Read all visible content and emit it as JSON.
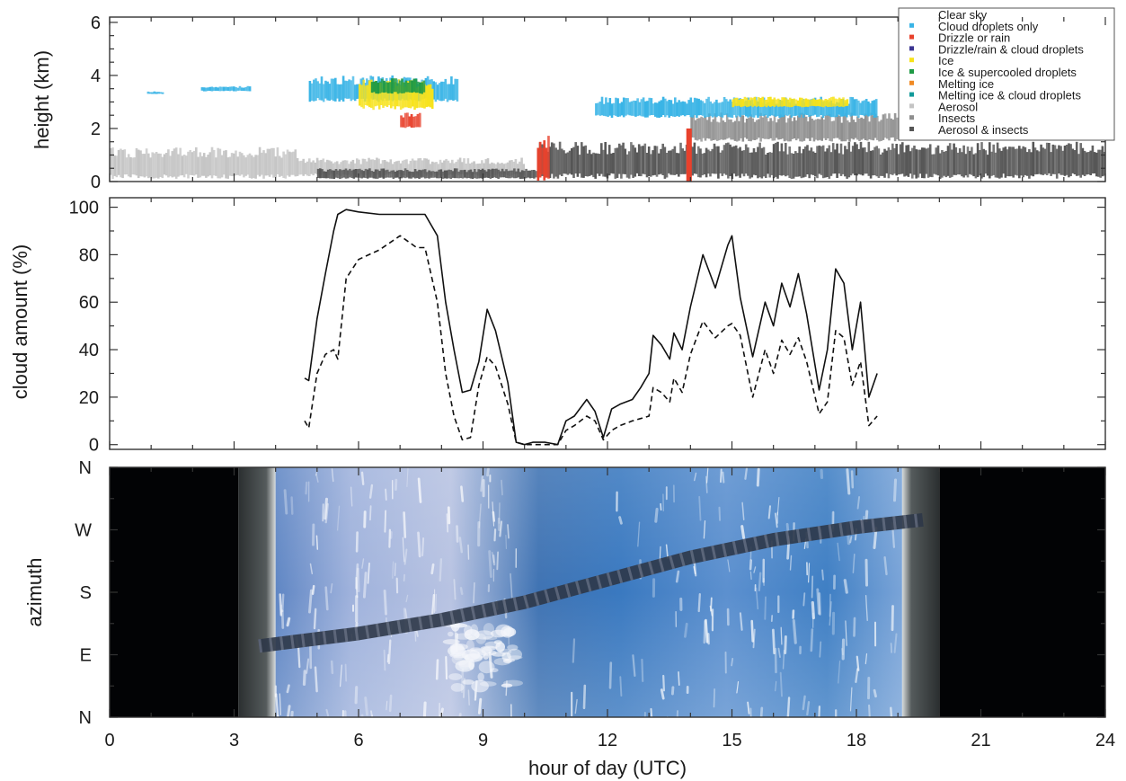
{
  "chart_data": [
    {
      "type": "heatmap",
      "ylabel": "height (km)",
      "ylim": [
        0,
        6.2
      ],
      "y_ticks": [
        "0",
        "2",
        "4",
        "6"
      ],
      "legend": {
        "placement": "top-right",
        "entries": [
          {
            "label": "Clear sky",
            "color": "#ffffff"
          },
          {
            "label": "Cloud droplets only",
            "color": "#39b4e6"
          },
          {
            "label": "Drizzle or rain",
            "color": "#e8412c"
          },
          {
            "label": "Drizzle/rain & cloud droplets",
            "color": "#3b3591"
          },
          {
            "label": "Ice",
            "color": "#f7e21a"
          },
          {
            "label": "Ice & supercooled droplets",
            "color": "#1f9a45"
          },
          {
            "label": "Melting ice",
            "color": "#f08a24"
          },
          {
            "label": "Melting ice & cloud droplets",
            "color": "#129a9a"
          },
          {
            "label": "Aerosol",
            "color": "#c4c4c4"
          },
          {
            "label": "Insects",
            "color": "#8f8f8f"
          },
          {
            "label": "Aerosol & insects",
            "color": "#555555"
          }
        ]
      },
      "regions": [
        {
          "class": "Aerosol",
          "x": [
            0,
            4.5
          ],
          "y": [
            0.1,
            1.3
          ]
        },
        {
          "class": "Aerosol",
          "x": [
            4.5,
            10
          ],
          "y": [
            0.2,
            0.9
          ]
        },
        {
          "class": "Aerosol & insects",
          "x": [
            5,
            10.3
          ],
          "y": [
            0.1,
            0.5
          ]
        },
        {
          "class": "Aerosol & insects",
          "x": [
            10.3,
            24
          ],
          "y": [
            0.1,
            1.5
          ]
        },
        {
          "class": "Insects",
          "x": [
            14,
            19
          ],
          "y": [
            1.5,
            2.6
          ]
        },
        {
          "class": "Cloud droplets only",
          "x": [
            0.9,
            1.3
          ],
          "y": [
            3.3,
            3.4
          ]
        },
        {
          "class": "Cloud droplets only",
          "x": [
            2.2,
            3.4
          ],
          "y": [
            3.4,
            3.6
          ]
        },
        {
          "class": "Cloud droplets only",
          "x": [
            4.8,
            8.4
          ],
          "y": [
            3.0,
            4.0
          ]
        },
        {
          "class": "Ice",
          "x": [
            6.0,
            7.8
          ],
          "y": [
            2.7,
            3.9
          ]
        },
        {
          "class": "Ice & supercooled droplets",
          "x": [
            6.3,
            7.6
          ],
          "y": [
            3.3,
            3.9
          ]
        },
        {
          "class": "Drizzle or rain",
          "x": [
            7.0,
            7.5
          ],
          "y": [
            2.0,
            2.6
          ]
        },
        {
          "class": "Drizzle or rain",
          "x": [
            10.3,
            10.6
          ],
          "y": [
            0.0,
            1.8
          ]
        },
        {
          "class": "Drizzle or rain",
          "x": [
            13.9,
            14.0
          ],
          "y": [
            0.0,
            2.0
          ]
        },
        {
          "class": "Cloud droplets only",
          "x": [
            11.7,
            18.5
          ],
          "y": [
            2.4,
            3.2
          ]
        },
        {
          "class": "Ice",
          "x": [
            15.0,
            17.8
          ],
          "y": [
            2.8,
            3.2
          ]
        }
      ]
    },
    {
      "type": "line",
      "ylabel": "cloud amount (%)",
      "ylim": [
        -2,
        104
      ],
      "y_ticks": [
        "0",
        "20",
        "40",
        "60",
        "80",
        "100"
      ],
      "series": [
        {
          "style": "solid",
          "x": [
            4.7,
            4.8,
            5.0,
            5.2,
            5.4,
            5.5,
            5.7,
            6.0,
            6.5,
            7.0,
            7.4,
            7.6,
            7.9,
            8.1,
            8.3,
            8.5,
            8.7,
            8.9,
            9.1,
            9.3,
            9.6,
            9.8,
            10.0,
            10.2,
            10.5,
            10.8,
            11.0,
            11.2,
            11.5,
            11.7,
            11.9,
            12.1,
            12.3,
            12.6,
            12.8,
            13.0,
            13.1,
            13.3,
            13.5,
            13.6,
            13.8,
            14.0,
            14.3,
            14.6,
            14.9,
            15.0,
            15.2,
            15.5,
            15.8,
            16.0,
            16.2,
            16.4,
            16.6,
            16.8,
            17.1,
            17.3,
            17.5,
            17.7,
            17.9,
            18.0,
            18.1,
            18.3,
            18.5
          ],
          "y": [
            28,
            27,
            53,
            72,
            90,
            97,
            99,
            98,
            97,
            97,
            97,
            97,
            88,
            60,
            40,
            22,
            23,
            35,
            57,
            48,
            26,
            1,
            0,
            1,
            1,
            0,
            10,
            12,
            19,
            14,
            3,
            15,
            17,
            19,
            24,
            30,
            46,
            42,
            36,
            47,
            40,
            58,
            80,
            66,
            84,
            88,
            62,
            37,
            60,
            50,
            68,
            58,
            72,
            55,
            23,
            40,
            74,
            68,
            40,
            50,
            60,
            20,
            30
          ]
        },
        {
          "style": "dashed",
          "x": [
            4.7,
            4.8,
            5.0,
            5.2,
            5.4,
            5.5,
            5.7,
            6.0,
            6.5,
            7.0,
            7.4,
            7.6,
            7.9,
            8.1,
            8.3,
            8.5,
            8.7,
            8.9,
            9.1,
            9.3,
            9.6,
            9.8,
            10.0,
            10.2,
            10.5,
            10.8,
            11.0,
            11.2,
            11.5,
            11.7,
            11.9,
            12.1,
            12.3,
            12.6,
            12.8,
            13.0,
            13.1,
            13.3,
            13.5,
            13.6,
            13.8,
            14.0,
            14.3,
            14.6,
            14.9,
            15.0,
            15.2,
            15.5,
            15.8,
            16.0,
            16.2,
            16.4,
            16.6,
            16.8,
            17.1,
            17.3,
            17.5,
            17.7,
            17.9,
            18.0,
            18.1,
            18.3,
            18.5
          ],
          "y": [
            10,
            7,
            30,
            38,
            40,
            36,
            70,
            78,
            82,
            88,
            83,
            83,
            60,
            30,
            12,
            2,
            3,
            25,
            37,
            33,
            17,
            1,
            0,
            0,
            0,
            0,
            6,
            8,
            12,
            10,
            2,
            6,
            8,
            10,
            11,
            12,
            24,
            22,
            18,
            28,
            22,
            38,
            52,
            45,
            50,
            51,
            46,
            20,
            40,
            30,
            44,
            38,
            45,
            35,
            13,
            18,
            48,
            45,
            25,
            30,
            35,
            8,
            12
          ]
        }
      ]
    },
    {
      "type": "heatmap",
      "xlabel": "hour of day (UTC)",
      "xlim": [
        0,
        24
      ],
      "x_ticks": [
        "0",
        "3",
        "6",
        "9",
        "12",
        "15",
        "18",
        "21",
        "24"
      ],
      "ylabel": "azimuth",
      "y_ticks": [
        "N",
        "E",
        "S",
        "W",
        "N"
      ],
      "sun_track": {
        "x": [
          3.6,
          6,
          8,
          10,
          12,
          14,
          16,
          18,
          19.6
        ],
        "y": [
          0.57,
          0.67,
          0.78,
          0.92,
          1.1,
          1.28,
          1.42,
          1.52,
          1.58
        ]
      },
      "night_spans": [
        [
          0,
          3.1
        ],
        [
          20,
          24
        ]
      ],
      "twilight_spans": [
        [
          3.1,
          4.0
        ],
        [
          19.1,
          20
        ]
      ]
    }
  ]
}
